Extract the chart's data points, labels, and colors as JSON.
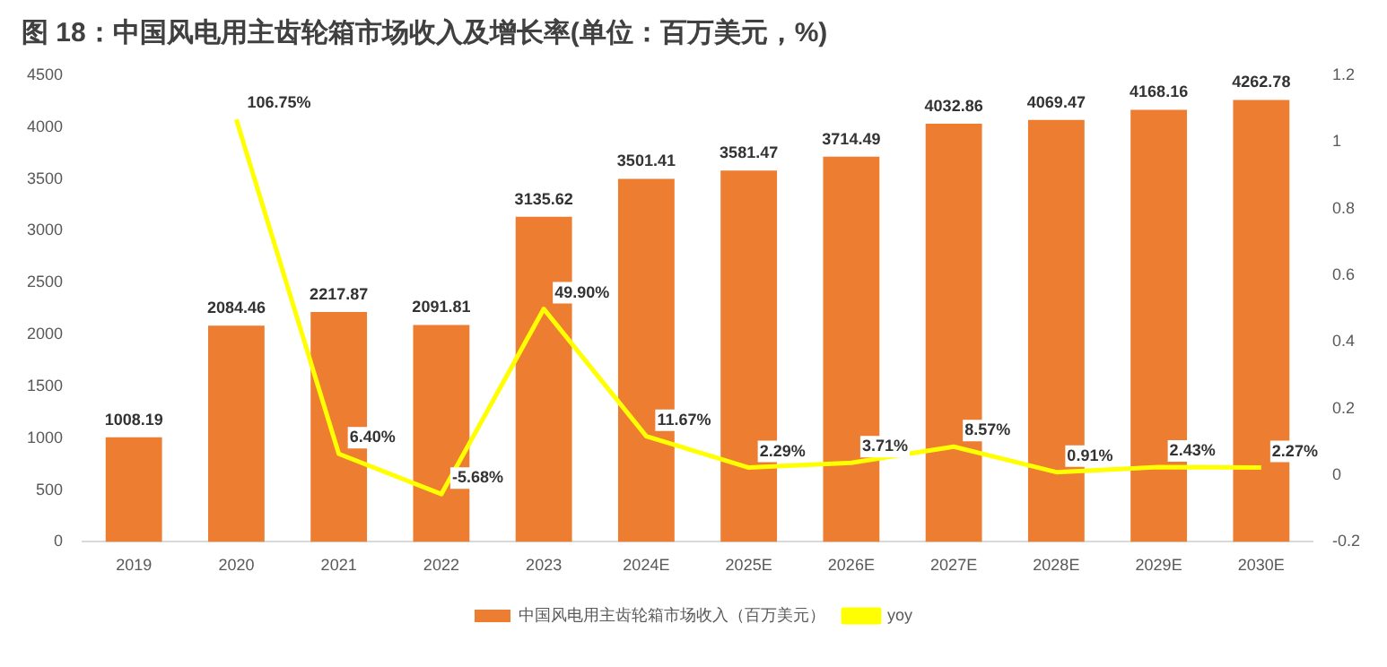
{
  "chart_data": {
    "type": "bar",
    "title": "图 18：中国风电用主齿轮箱市场收入及增长率(单位：百万美元，%)",
    "categories": [
      "2019",
      "2020",
      "2021",
      "2022",
      "2023",
      "2024E",
      "2025E",
      "2026E",
      "2027E",
      "2028E",
      "2029E",
      "2030E"
    ],
    "series": [
      {
        "name": "中国风电用主齿轮箱市场收入（百万美元）",
        "color": "#ed7d31",
        "values": [
          1008.19,
          2084.46,
          2217.87,
          2091.81,
          3135.62,
          3501.41,
          3581.47,
          3714.49,
          4032.86,
          4069.47,
          4168.16,
          4262.78
        ],
        "value_labels": [
          "1008.19",
          "2084.46",
          "2217.87",
          "2091.81",
          "3135.62",
          "3501.41",
          "3581.47",
          "3714.49",
          "4032.86",
          "4069.47",
          "4168.16",
          "4262.78"
        ]
      },
      {
        "name": "yoy",
        "type": "line",
        "axis": "y2",
        "color": "#ffff00",
        "values": [
          null,
          1.0675,
          0.064,
          -0.0568,
          0.499,
          0.1167,
          0.0229,
          0.0371,
          0.0857,
          0.0091,
          0.0243,
          0.0227
        ],
        "value_labels": [
          null,
          "106.75%",
          "6.40%",
          "-5.68%",
          "49.90%",
          "11.67%",
          "2.29%",
          "3.71%",
          "8.57%",
          "0.91%",
          "2.43%",
          "2.27%"
        ]
      }
    ],
    "ylim": [
      0,
      4500
    ],
    "yticks": [
      0,
      500,
      1000,
      1500,
      2000,
      2500,
      3000,
      3500,
      4000,
      4500
    ],
    "y2lim": [
      -0.2,
      1.2
    ],
    "y2ticks": [
      -0.2,
      0,
      0.2,
      0.4,
      0.6,
      0.8,
      1,
      1.2
    ],
    "legend": "bottom",
    "grid": false,
    "marker": "none"
  }
}
